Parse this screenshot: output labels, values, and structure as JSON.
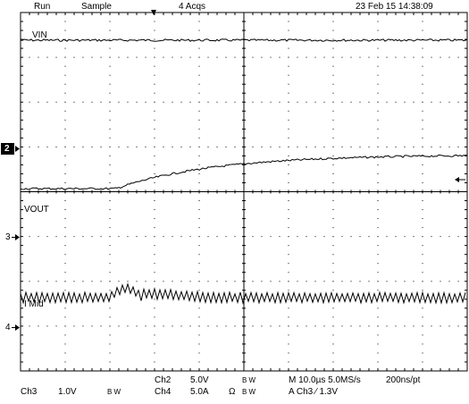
{
  "header": {
    "run_label": "Run",
    "acq_mode": "Sample",
    "acq_count": "4 Acqs",
    "datetime": "23 Feb 15 14:38:09"
  },
  "channels": {
    "vin_label": "VIN",
    "vout_label": "VOUT",
    "imid_label": "I Mid",
    "ch2_marker": "2",
    "ch3_marker": "3",
    "ch4_marker": "4"
  },
  "footer": {
    "ch3_name": "Ch3",
    "ch3_scale": "1.0V",
    "bw1": "B W",
    "ch2_name": "Ch2",
    "ch2_scale": "5.0V",
    "bw2": "B W",
    "ch4_name": "Ch4",
    "ch4_scale": "5.0A",
    "ohm": "Ω",
    "bw3": "B W",
    "bw4": "B W",
    "timebase": "M 10.0µs 5.0MS/s",
    "record": "200ns/pt",
    "trigger": "A  Ch3  ⁄  1.3V"
  },
  "colors": {
    "background": "#ffffff",
    "trace": "#000000",
    "grid": "#000000"
  }
}
